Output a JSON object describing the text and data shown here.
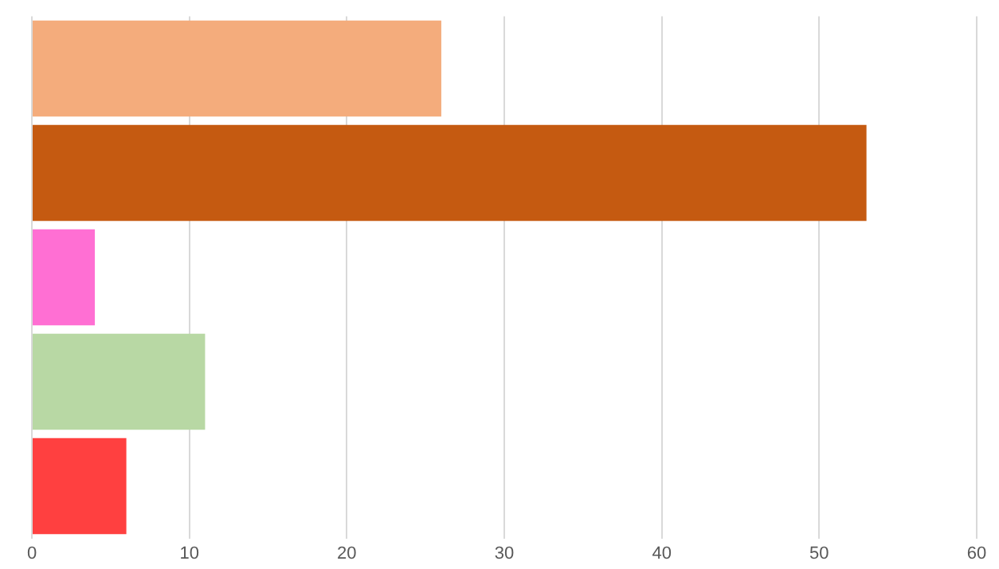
{
  "chart_data": {
    "type": "bar",
    "orientation": "horizontal",
    "categories": [
      null,
      null,
      null,
      null,
      null
    ],
    "values": [
      26,
      53,
      4,
      11,
      6
    ],
    "colors": [
      "#f4ac7c",
      "#c55a11",
      "#ff6fd3",
      "#b8d8a4",
      "#ff4040"
    ],
    "xlim": [
      0,
      60
    ],
    "xticks": [
      0,
      10,
      20,
      30,
      40,
      50,
      60
    ],
    "grid": "x",
    "legend": false
  }
}
